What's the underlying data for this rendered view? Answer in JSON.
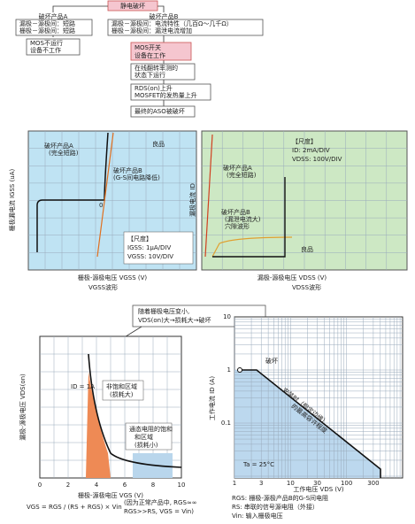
{
  "flow": {
    "top": "静电破坏",
    "a_title": "破坏产品A",
    "a_detail": [
      "漏极－源极间：短路",
      "栅极－源极间：短路"
    ],
    "a_result": [
      "MOS不运行",
      "设备不工作"
    ],
    "b_title": "破坏产品B",
    "b_detail": [
      "漏极－源极间：电流特性（几百Ω～几千Ω）",
      "栅极－源极间：漏泄电流增加"
    ],
    "steps": [
      [
        "MOS开关",
        "设备在工作"
      ],
      [
        "在线翻转率测的",
        "状态下运行"
      ],
      [
        "RDS(on)上升",
        "MOSFET的发热量上升"
      ],
      [
        "最终的ASO被破坏"
      ]
    ]
  },
  "left_panel": {
    "a_label": [
      "破坏产品A",
      "(完全短路)"
    ],
    "good": "良品",
    "b_label": [
      "破坏产品B",
      "(G-S间电路降低)"
    ],
    "zero": "0",
    "scale": [
      "【尺度】",
      "IGSS: 1μA/DIV",
      "VGSS: 10V/DIV"
    ],
    "y_label": "栅极漏电流 IGSS (uA)",
    "x_label": "栅极-源极电压 VGSS (V)",
    "wave": "VGSS波形"
  },
  "right_panel": {
    "scale": [
      "【尺度】",
      "ID: 2mA/DIV",
      "VDSS: 100V/DIV"
    ],
    "a_label": [
      "破坏产品A",
      "(完全短路)"
    ],
    "b_label": [
      "破坏产品B",
      "(漏泄电流大)",
      "穴隙波形"
    ],
    "good": "良品",
    "y_label": "漏极电流 ID",
    "x_label": "漏极-源极电压 VDSS (V)",
    "wave": "VDSS波形"
  },
  "note": [
    "随着栅极电压变小,",
    "VDS(on)大→损耗大→破坏"
  ],
  "vgs_chart": {
    "y_label": "漏极-源极电压 VDS(on)",
    "id_label": "ID = 1A",
    "region1": [
      "非饱和区域",
      "(损耗大)"
    ],
    "region2": [
      "通态电阻的饱和",
      "和区域",
      "(损耗小)"
    ],
    "x_label": "栅极-源极电压 VGS (V)",
    "xticks": [
      "0",
      "2",
      "4",
      "6",
      "8",
      "10"
    ]
  },
  "aso_chart": {
    "y_label": "工作电流 ID (A)",
    "x_label": "工作电压 VDS (V)",
    "break": "破坏",
    "limit": [
      "安装时（假定边缘）",
      "的最高容许程度"
    ],
    "ta": "Ta = 25°C",
    "yticks": [
      "10",
      "1",
      "0.1"
    ],
    "xticks": [
      "1",
      "3",
      "10",
      "30",
      "100",
      "300"
    ]
  },
  "footer": {
    "formula": "VGS = RGS / (RS + RGS) × Vin",
    "reason": [
      "(因为正常产品中, RGS≈∞",
      "RGS>>RS, VGS = Vin)"
    ],
    "legend": [
      "RGS: 栅极-源极产品B的G-S间电阻",
      "RS: 串联的信号源电阻（外接）",
      "Vin: 输入栅极电压"
    ]
  }
}
